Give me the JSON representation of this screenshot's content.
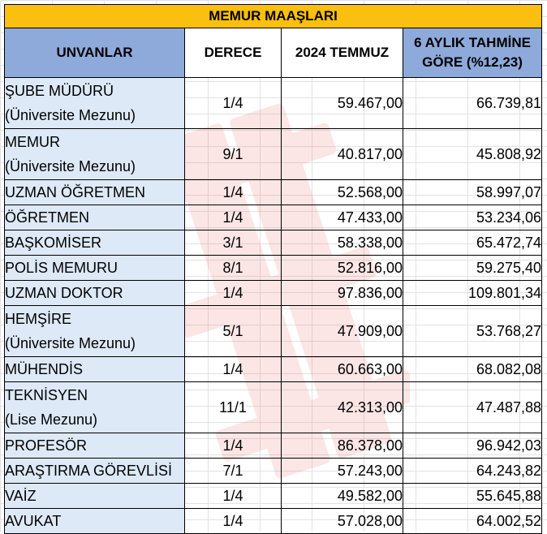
{
  "title": "MEMUR MAAŞLARI",
  "headers": {
    "unvan": "UNVANLAR",
    "derece": "DERECE",
    "july": "2024 TEMMUZ",
    "projection_line1": "6 AYLIK TAHMİNE",
    "projection_line2": "GÖRE (%12,23)"
  },
  "rows": [
    {
      "name": "ŞUBE MÜDÜRÜ",
      "sub": "(Üniversite Mezunu)",
      "derece": "1/4",
      "july": "59.467,00",
      "projection": "66.739,81"
    },
    {
      "name": "MEMUR",
      "sub": "(Üniversite Mezunu)",
      "derece": "9/1",
      "july": "40.817,00",
      "projection": "45.808,92"
    },
    {
      "name": "UZMAN ÖĞRETMEN",
      "sub": "",
      "derece": "1/4",
      "july": "52.568,00",
      "projection": "58.997,07"
    },
    {
      "name": "ÖĞRETMEN",
      "sub": "",
      "derece": "1/4",
      "july": "47.433,00",
      "projection": "53.234,06"
    },
    {
      "name": "BAŞKOMİSER",
      "sub": "",
      "derece": "3/1",
      "july": "58.338,00",
      "projection": "65.472,74"
    },
    {
      "name": "POLİS MEMURU",
      "sub": "",
      "derece": "8/1",
      "july": "52.816,00",
      "projection": "59.275,40"
    },
    {
      "name": "UZMAN DOKTOR",
      "sub": "",
      "derece": "1/4",
      "july": "97.836,00",
      "projection": "109.801,34"
    },
    {
      "name": "HEMŞİRE",
      "sub": "(Üniversite Mezunu)",
      "derece": "5/1",
      "july": "47.909,00",
      "projection": "53.768,27"
    },
    {
      "name": "MÜHENDİS",
      "sub": "",
      "derece": "1/4",
      "july": "60.663,00",
      "projection": "68.082,08"
    },
    {
      "name": "TEKNİSYEN",
      "sub": "(Lise Mezunu)",
      "derece": "11/1",
      "july": "42.313,00",
      "projection": "47.487,88"
    },
    {
      "name": "PROFESÖR",
      "sub": "",
      "derece": "1/4",
      "july": "86.378,00",
      "projection": "96.942,03"
    },
    {
      "name": "ARAŞTIRMA GÖREVLİSİ",
      "sub": "",
      "derece": "7/1",
      "july": "57.243,00",
      "projection": "64.243,82"
    },
    {
      "name": "VAİZ",
      "sub": "",
      "derece": "1/4",
      "july": "49.582,00",
      "projection": "55.645,88"
    },
    {
      "name": "AVUKAT",
      "sub": "",
      "derece": "1/4",
      "july": "57.028,00",
      "projection": "64.002,52"
    }
  ],
  "colors": {
    "title_bg": "#fbbf0f",
    "header_bg": "#8eaadb",
    "name_col_bg": "#dde9f6",
    "watermark": "#e53935"
  }
}
